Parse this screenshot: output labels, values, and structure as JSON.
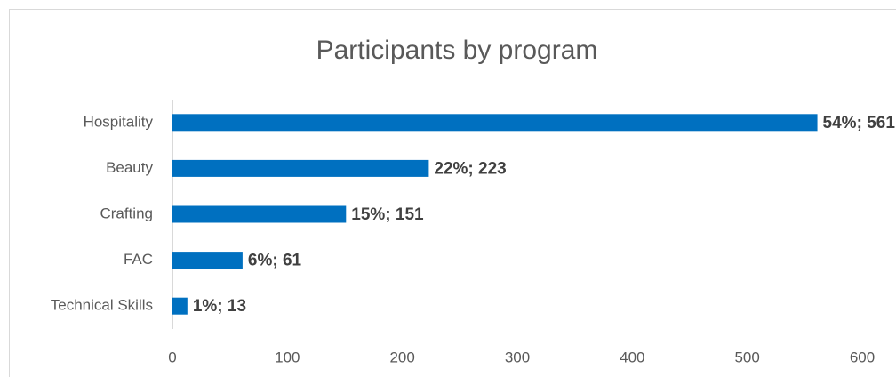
{
  "chart_data": {
    "type": "bar",
    "orientation": "horizontal",
    "title": "Participants by program",
    "categories": [
      "Hospitality",
      "Beauty",
      "Crafting",
      "FAC",
      "Technical Skills"
    ],
    "values": [
      561,
      223,
      151,
      61,
      13
    ],
    "value_labels": [
      "54%; 561",
      "22%; 223",
      "15%; 151",
      "6%; 61",
      "1%; 13"
    ],
    "color": "#0070c0",
    "xlim": [
      0,
      600
    ],
    "xticks": [
      0,
      100,
      200,
      300,
      400,
      500,
      600
    ],
    "grid": false
  }
}
